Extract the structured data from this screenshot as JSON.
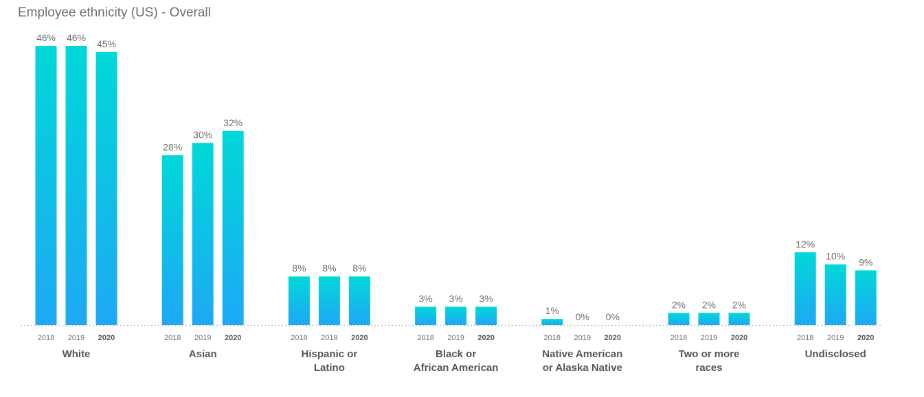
{
  "chart_data": {
    "type": "bar",
    "title": "Employee ethnicity (US) - Overall",
    "years": [
      "2018",
      "2019",
      "2020"
    ],
    "highlight_year": "2020",
    "categories": [
      {
        "name_lines": [
          "White"
        ],
        "values": [
          46,
          46,
          45
        ],
        "labels": [
          "46%",
          "46%",
          "45%"
        ]
      },
      {
        "name_lines": [
          "Asian"
        ],
        "values": [
          28,
          30,
          32
        ],
        "labels": [
          "28%",
          "30%",
          "32%"
        ]
      },
      {
        "name_lines": [
          "Hispanic or",
          "Latino"
        ],
        "values": [
          8,
          8,
          8
        ],
        "labels": [
          "8%",
          "8%",
          "8%"
        ]
      },
      {
        "name_lines": [
          "Black or",
          "African American"
        ],
        "values": [
          3,
          3,
          3
        ],
        "labels": [
          "3%",
          "3%",
          "3%"
        ]
      },
      {
        "name_lines": [
          "Native American",
          "or Alaska Native"
        ],
        "values": [
          1,
          0,
          0
        ],
        "labels": [
          "1%",
          "0%",
          "0%"
        ]
      },
      {
        "name_lines": [
          "Two or more",
          "races"
        ],
        "values": [
          2,
          2,
          2
        ],
        "labels": [
          "2%",
          "2%",
          "2%"
        ]
      },
      {
        "name_lines": [
          "Undisclosed"
        ],
        "values": [
          12,
          10,
          9
        ],
        "labels": [
          "12%",
          "10%",
          "9%"
        ]
      }
    ],
    "ylim": [
      0,
      46
    ],
    "colors": {
      "bar_top": "#00d8d8",
      "bar_bottom": "#1ea8f5",
      "baseline": "#b5b5b5"
    }
  }
}
